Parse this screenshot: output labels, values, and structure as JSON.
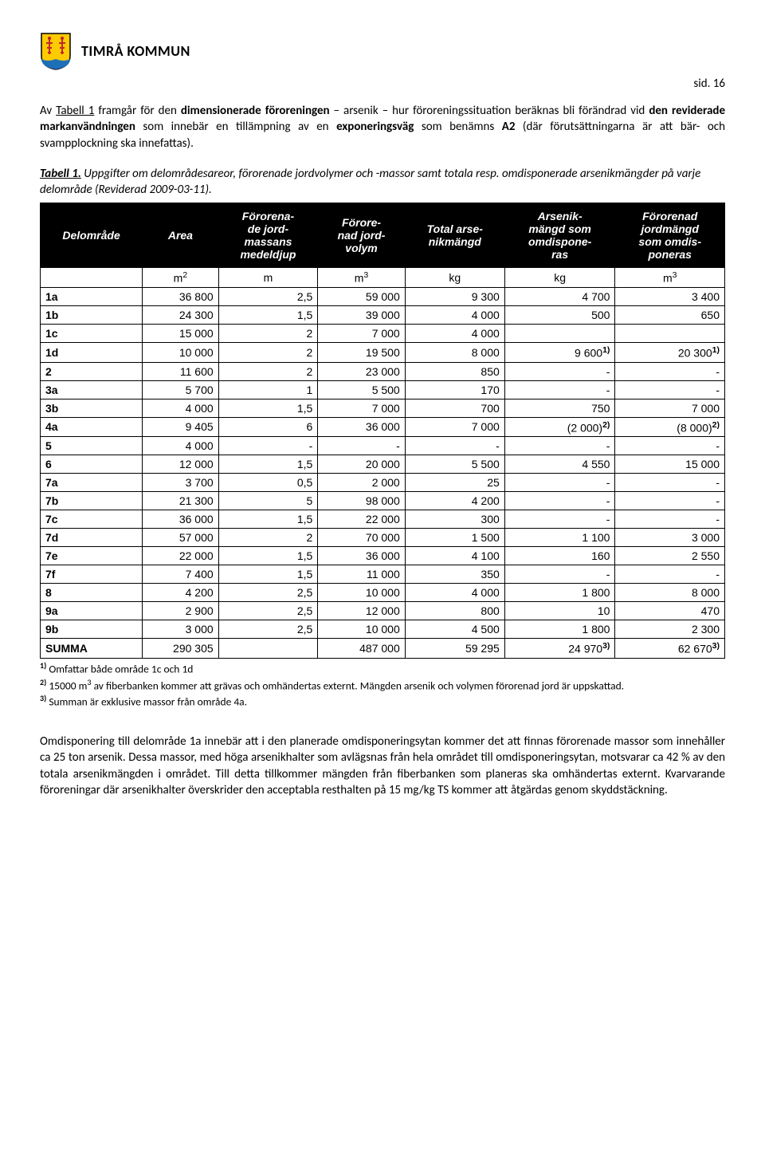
{
  "header": {
    "org_name": "TIMRÅ KOMMUN",
    "page_label": "sid. 16"
  },
  "intro_para": {
    "pre": "Av ",
    "tabell_ref": "Tabell 1",
    "mid1": " framgår för den ",
    "bold1": "dimensionerade föroreningen",
    "mid2": " – arsenik – hur föroreningssituation beräknas bli förändrad vid ",
    "bold2": "den reviderade markanvändningen",
    "mid3": " som innebär en tillämpning av en ",
    "bold3": "exponeringsväg",
    "mid4": " som benämns ",
    "bold4": "A2",
    "tail": " (där förutsättningarna är att bär- och svampplockning ska innefattas)."
  },
  "caption": {
    "ref": "Tabell 1.",
    "text": " Uppgifter om delområdesareor, förorenade jordvolymer och -massor samt totala resp. omdisponerade arsenikmängder på varje delområde (Reviderad 2009-03-11)."
  },
  "table": {
    "headers": [
      "Delområde",
      "Area",
      "Förorena-\nde jord-\nmassans\nmedeldjup",
      "Förore-\nnad jord-\nvolym",
      "Total arse-\nnikmängd",
      "Arsenik-\nmängd som\nomdispone-\nras",
      "Förorenad\njordmängd\nsom omdis-\nponeras"
    ],
    "units": [
      "",
      "m²",
      "m",
      "m³",
      "kg",
      "kg",
      "m³"
    ],
    "rows": [
      {
        "lbl": "1a",
        "c": [
          "36 800",
          "2,5",
          "59 000",
          "9 300",
          "4 700",
          "3 400"
        ]
      },
      {
        "lbl": "1b",
        "c": [
          "24 300",
          "1,5",
          "39 000",
          "4 000",
          "500",
          "650"
        ]
      },
      {
        "lbl": "1c",
        "c": [
          "15 000",
          "2",
          "7 000",
          "4 000",
          "",
          ""
        ]
      },
      {
        "lbl": "1d",
        "c": [
          "10 000",
          "2",
          "19 500",
          "8 000",
          {
            "v": "9 600",
            "sup": "1)"
          },
          {
            "v": "20 300",
            "sup": "1)"
          }
        ]
      },
      {
        "lbl": "2",
        "c": [
          "11 600",
          "2",
          "23 000",
          "850",
          "-",
          "-"
        ]
      },
      {
        "lbl": "3a",
        "c": [
          "5 700",
          "1",
          "5 500",
          "170",
          "-",
          "-"
        ]
      },
      {
        "lbl": "3b",
        "c": [
          "4 000",
          "1,5",
          "7 000",
          "700",
          "750",
          "7 000"
        ]
      },
      {
        "lbl": "4a",
        "c": [
          "9 405",
          "6",
          "36 000",
          "7 000",
          {
            "v": "(2 000)",
            "sup": "2)"
          },
          {
            "v": "(8 000)",
            "sup": "2)"
          }
        ]
      },
      {
        "lbl": "5",
        "c": [
          "4 000",
          "-",
          "-",
          "-",
          "-",
          "-"
        ]
      },
      {
        "lbl": "6",
        "c": [
          "12 000",
          "1,5",
          "20 000",
          "5 500",
          "4 550",
          "15 000"
        ]
      },
      {
        "lbl": "7a",
        "c": [
          "3 700",
          "0,5",
          "2 000",
          "25",
          "-",
          "-"
        ]
      },
      {
        "lbl": "7b",
        "c": [
          "21 300",
          "5",
          "98 000",
          "4 200",
          "-",
          "-"
        ]
      },
      {
        "lbl": "7c",
        "c": [
          "36 000",
          "1,5",
          "22 000",
          "300",
          "-",
          "-"
        ]
      },
      {
        "lbl": "7d",
        "c": [
          "57 000",
          "2",
          "70 000",
          "1 500",
          "1 100",
          "3 000"
        ]
      },
      {
        "lbl": "7e",
        "c": [
          "22 000",
          "1,5",
          "36 000",
          "4 100",
          "160",
          "2 550"
        ]
      },
      {
        "lbl": "7f",
        "c": [
          "7 400",
          "1,5",
          "11 000",
          "350",
          "-",
          "-"
        ]
      },
      {
        "lbl": "8",
        "c": [
          "4 200",
          "2,5",
          "10 000",
          "4 000",
          "1 800",
          "8 000"
        ]
      },
      {
        "lbl": "9a",
        "c": [
          "2 900",
          "2,5",
          "12 000",
          "800",
          "10",
          "470"
        ]
      },
      {
        "lbl": "9b",
        "c": [
          "3 000",
          "2,5",
          "10 000",
          "4 500",
          "1 800",
          "2 300"
        ]
      },
      {
        "lbl": "SUMMA",
        "c": [
          "290 305",
          "",
          "487 000",
          "59 295",
          {
            "v": "24 970",
            "sup": "3)"
          },
          {
            "v": "62 670",
            "sup": "3)"
          }
        ]
      }
    ]
  },
  "footnotes": {
    "f1_sup": "1)",
    "f1": " Omfattar både område 1c och 1d",
    "f2_sup": "2)",
    "f2a": " 15000 m",
    "f2b": " av fiberbanken kommer att grävas och omhändertas externt. Mängden arsenik och volymen förorenad jord är uppskattad.",
    "f3_sup": "3)",
    "f3": " Summan är exklusive massor från område 4a."
  },
  "closing": "Omdisponering till delområde 1a innebär att i den planerade omdisponeringsytan kommer det att finnas förorenade massor som innehåller ca 25 ton arsenik. Dessa massor, med höga arsenikhalter som avlägsnas från hela området till omdisponeringsytan, motsvarar ca 42 % av den totala arsenikmängden i området. Till detta tillkommer mängden från fiberbanken som planeras ska omhändertas externt. Kvarvarande föroreningar där arsenikhalter överskrider den acceptabla resthalten på 15 mg/kg TS kommer att åtgärdas genom skyddstäckning."
}
